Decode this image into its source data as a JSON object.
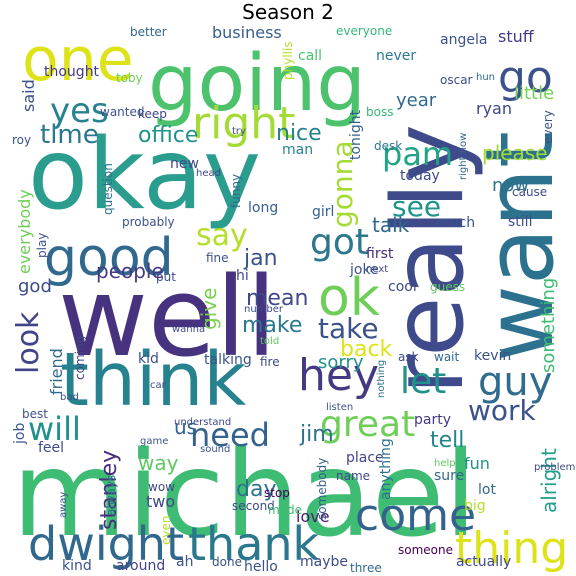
{
  "title": "Season 2",
  "words": [
    {
      "t": "michael",
      "c": "#3fbc73"
    },
    {
      "t": "well",
      "c": "#46327e"
    },
    {
      "t": "okay",
      "c": "#2a9d8f"
    },
    {
      "t": "really",
      "c": "#3e4a89"
    },
    {
      "t": "want",
      "c": "#2c728e"
    },
    {
      "t": "going",
      "c": "#4cc26c"
    },
    {
      "t": "think",
      "c": "#26828e"
    },
    {
      "t": "one",
      "c": "#dde318"
    },
    {
      "t": "right",
      "c": "#a5db36"
    },
    {
      "t": "good",
      "c": "#31688e"
    },
    {
      "t": "hey",
      "c": "#443983"
    },
    {
      "t": "ok",
      "c": "#6ece58"
    },
    {
      "t": "go",
      "c": "#3b528b"
    },
    {
      "t": "guy",
      "c": "#2f6c8e"
    },
    {
      "t": "dwight",
      "c": "#31688e"
    },
    {
      "t": "thank",
      "c": "#2a788e"
    },
    {
      "t": "come",
      "c": "#33638d"
    },
    {
      "t": "thing",
      "c": "#dde318"
    },
    {
      "t": "great",
      "c": "#6ece58"
    },
    {
      "t": "let",
      "c": "#21918c"
    },
    {
      "t": "yes",
      "c": "#26828e"
    },
    {
      "t": "time",
      "c": "#2a788e"
    },
    {
      "t": "pam",
      "c": "#20a386"
    },
    {
      "t": "got",
      "c": "#2a788e"
    },
    {
      "t": "need",
      "c": "#33638d"
    },
    {
      "t": "work",
      "c": "#3b528b"
    },
    {
      "t": "look",
      "c": "#414487"
    },
    {
      "t": "will",
      "c": "#21918c"
    },
    {
      "t": "take",
      "c": "#3b528b"
    },
    {
      "t": "gonna",
      "c": "#a5db36"
    },
    {
      "t": "say",
      "c": "#b5de2b"
    },
    {
      "t": "see",
      "c": "#1f948c"
    },
    {
      "t": "please",
      "c": "#a5db36"
    },
    {
      "t": "office",
      "c": "#21918c"
    },
    {
      "t": "nice",
      "c": "#26828e"
    },
    {
      "t": "back",
      "c": "#dde318"
    },
    {
      "t": "make",
      "c": "#2a788e"
    },
    {
      "t": "mean",
      "c": "#3e4a89"
    },
    {
      "t": "people",
      "c": "#443983"
    },
    {
      "t": "jan",
      "c": "#3b528b"
    },
    {
      "t": "tell",
      "c": "#25848e"
    },
    {
      "t": "jim",
      "c": "#2c728e"
    },
    {
      "t": "day",
      "c": "#2c728e"
    },
    {
      "t": "way",
      "c": "#5ec962"
    },
    {
      "t": "us",
      "c": "#33638d"
    },
    {
      "t": "stanley",
      "c": "#472d7b"
    },
    {
      "t": "year",
      "c": "#31688e"
    },
    {
      "t": "little",
      "c": "#75d054"
    },
    {
      "t": "now",
      "c": "#2c728e"
    },
    {
      "t": "talk",
      "c": "#31688e"
    },
    {
      "t": "give",
      "c": "#7ad151"
    },
    {
      "t": "sorry",
      "c": "#21918c"
    },
    {
      "t": "something",
      "c": "#3fbc73"
    },
    {
      "t": "alright",
      "c": "#1fa088"
    },
    {
      "t": "love",
      "c": "#481f70"
    },
    {
      "t": "said",
      "c": "#3b528b"
    },
    {
      "t": "thought",
      "c": "#443983"
    },
    {
      "t": "business",
      "c": "#355f8d"
    },
    {
      "t": "everybody",
      "c": "#6ece58"
    },
    {
      "t": "friend",
      "c": "#2f6c8e"
    },
    {
      "t": "god",
      "c": "#3e4a89"
    },
    {
      "t": "fun",
      "c": "#21918c"
    },
    {
      "t": "two",
      "c": "#3e4a89"
    },
    {
      "t": "stuff",
      "c": "#443983"
    },
    {
      "t": "angela",
      "c": "#3b528b"
    },
    {
      "t": "ryan",
      "c": "#404688"
    },
    {
      "t": "never",
      "c": "#2a788e"
    },
    {
      "t": "call",
      "c": "#4ac16d"
    },
    {
      "t": "better",
      "c": "#31688e"
    },
    {
      "t": "keep",
      "c": "#414487"
    },
    {
      "t": "wanted",
      "c": "#3b528b"
    },
    {
      "t": "toby",
      "c": "#6ece58"
    },
    {
      "t": "roy",
      "c": "#3b528b"
    },
    {
      "t": "man",
      "c": "#25848e"
    },
    {
      "t": "tonight",
      "c": "#355f8d"
    },
    {
      "t": "new",
      "c": "#3e4a89"
    },
    {
      "t": "today",
      "c": "#3e4a89"
    },
    {
      "t": "desk",
      "c": "#2a788e"
    },
    {
      "t": "question",
      "c": "#2c728e"
    },
    {
      "t": "long",
      "c": "#355f8d"
    },
    {
      "t": "girl",
      "c": "#33638d"
    },
    {
      "t": "probably",
      "c": "#3b528b"
    },
    {
      "t": "much",
      "c": "#3b528b"
    },
    {
      "t": "still",
      "c": "#3e4a89"
    },
    {
      "t": "first",
      "c": "#472d7b"
    },
    {
      "t": "hi",
      "c": "#404688"
    },
    {
      "t": "joke",
      "c": "#3b528b"
    },
    {
      "t": "cool",
      "c": "#3e4a89"
    },
    {
      "t": "guess",
      "c": "#5ec962"
    },
    {
      "t": "kid",
      "c": "#3b528b"
    },
    {
      "t": "talking",
      "c": "#3b528b"
    },
    {
      "t": "fire",
      "c": "#3e4a89"
    },
    {
      "t": "ask",
      "c": "#3e4a89"
    },
    {
      "t": "wait",
      "c": "#31688e"
    },
    {
      "t": "kevin",
      "c": "#3b528b"
    },
    {
      "t": "party",
      "c": "#443983"
    },
    {
      "t": "place",
      "c": "#414487"
    },
    {
      "t": "sure",
      "c": "#31688e"
    },
    {
      "t": "lot",
      "c": "#31688e"
    },
    {
      "t": "second",
      "c": "#3e4a89"
    },
    {
      "t": "stop",
      "c": "#440154"
    },
    {
      "t": "name",
      "c": "#404688"
    },
    {
      "t": "made",
      "c": "#3fbc73"
    },
    {
      "t": "somebody",
      "c": "#355f8d"
    },
    {
      "t": "anything",
      "c": "#2c728e"
    },
    {
      "t": "big",
      "c": "#b5de2b"
    },
    {
      "t": "actually",
      "c": "#3e4a89"
    },
    {
      "t": "maybe",
      "c": "#3e4a89"
    },
    {
      "t": "done",
      "c": "#3b528b"
    },
    {
      "t": "hello",
      "c": "#3b528b"
    },
    {
      "t": "around",
      "c": "#414487"
    },
    {
      "t": "kind",
      "c": "#3b528b"
    },
    {
      "t": "three",
      "c": "#31688e"
    },
    {
      "t": "someone",
      "c": "#440154"
    },
    {
      "t": "ah",
      "c": "#3b528b"
    },
    {
      "t": "even",
      "c": "#b5de2b"
    },
    {
      "t": "always",
      "c": "#2c728e"
    },
    {
      "t": "wow",
      "c": "#3e4a89"
    },
    {
      "t": "job",
      "c": "#3b528b"
    },
    {
      "t": "best",
      "c": "#3b528b"
    },
    {
      "t": "feel",
      "c": "#3e4a89"
    },
    {
      "t": "coming",
      "c": "#404688"
    },
    {
      "t": "play",
      "c": "#3b528b"
    },
    {
      "t": "put",
      "c": "#3e4a89"
    },
    {
      "t": "fine",
      "c": "#3b528b"
    },
    {
      "t": "everyone",
      "c": "#35b779"
    },
    {
      "t": "phyllis",
      "c": "#b5de2b"
    },
    {
      "t": "oscar",
      "c": "#3e4a89"
    },
    {
      "t": "boss",
      "c": "#35b779"
    },
    {
      "t": "hun",
      "c": "#31688e"
    },
    {
      "t": "every",
      "c": "#3b528b"
    },
    {
      "t": "cause",
      "c": "#3e4a89"
    },
    {
      "t": "right now",
      "c": "#31688e"
    },
    {
      "t": "try",
      "c": "#3e4a89"
    },
    {
      "t": "funny",
      "c": "#31688e"
    },
    {
      "t": "head",
      "c": "#3e4a89"
    },
    {
      "t": "next",
      "c": "#3e4a89"
    },
    {
      "t": "number",
      "c": "#3e4a89"
    },
    {
      "t": "told",
      "c": "#5ec962"
    },
    {
      "t": "wanna",
      "c": "#3e4a89"
    },
    {
      "t": "car",
      "c": "#3e4a89"
    },
    {
      "t": "nothing",
      "c": "#2c728e"
    },
    {
      "t": "listen",
      "c": "#3b528b"
    },
    {
      "t": "understand",
      "c": "#3e4a89"
    },
    {
      "t": "game",
      "c": "#3b528b"
    },
    {
      "t": "sound",
      "c": "#3b528b"
    },
    {
      "t": "help",
      "c": "#5ec962"
    },
    {
      "t": "problem",
      "c": "#3e4a89"
    },
    {
      "t": "bad",
      "c": "#3b528b"
    },
    {
      "t": "away",
      "c": "#3b528b"
    }
  ]
}
